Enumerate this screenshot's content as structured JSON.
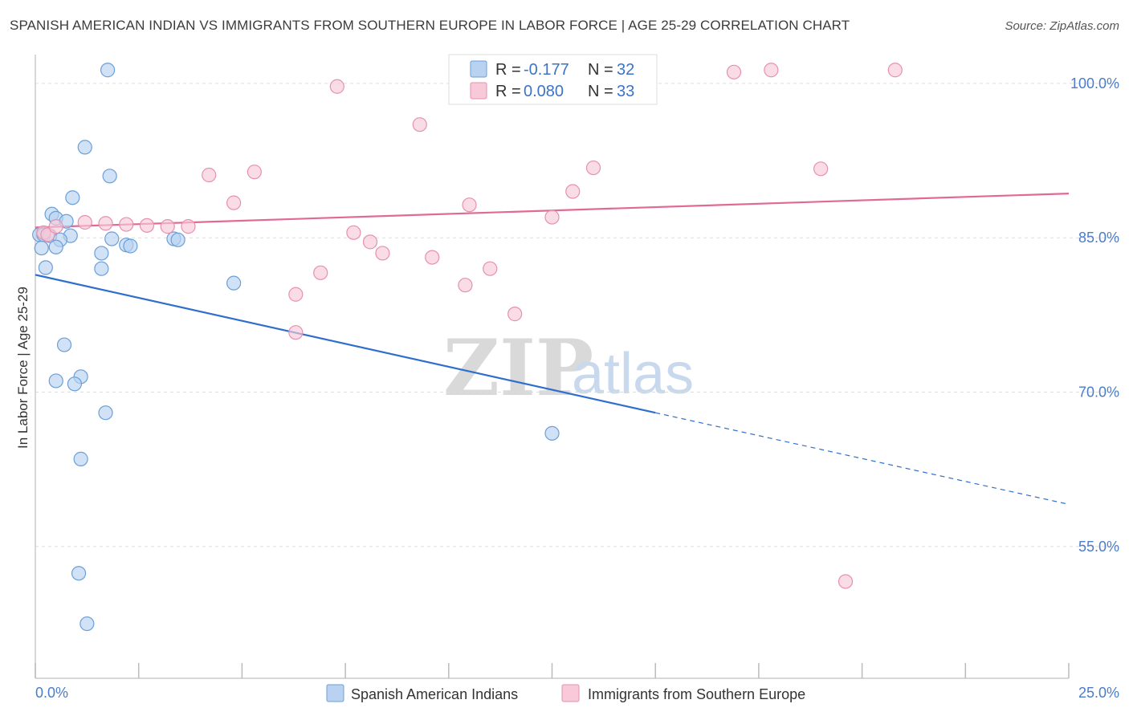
{
  "header": {
    "title": "SPANISH AMERICAN INDIAN VS IMMIGRANTS FROM SOUTHERN EUROPE IN LABOR FORCE | AGE 25-29 CORRELATION CHART",
    "source": "Source: ZipAtlas.com"
  },
  "legend": {
    "r_label": "R =",
    "n_label": "N =",
    "rows": [
      {
        "r": "-0.177",
        "n": "32"
      },
      {
        "r": "0.080",
        "n": "33"
      }
    ]
  },
  "watermark": {
    "zip": "ZIP",
    "atlas": "atlas"
  },
  "colors": {
    "blue_fill": "#b9d2f1",
    "blue_stroke": "#6a9fd8",
    "blue_line": "#2f6fcc",
    "pink_fill": "#f8c9d8",
    "pink_stroke": "#e691ad",
    "pink_line": "#e06a96",
    "axis_label": "#4a7cc9",
    "grid": "#dddddd"
  },
  "chart_data": {
    "type": "scatter",
    "title": "SPANISH AMERICAN INDIAN VS IMMIGRANTS FROM SOUTHERN EUROPE IN LABOR FORCE | AGE 25-29 CORRELATION CHART",
    "xlabel": "",
    "ylabel": "In Labor Force | Age 25-29",
    "xlim": [
      0,
      25
    ],
    "ylim": [
      42.2,
      102.8
    ],
    "x_tick_labels": [
      "0.0%",
      "25.0%"
    ],
    "y_ticks": [
      100,
      85,
      70,
      55
    ],
    "y_tick_labels": [
      "100.0%",
      "85.0%",
      "70.0%",
      "55.0%"
    ],
    "grid": true,
    "legend_position": "bottom",
    "series": [
      {
        "name": "Spanish American Indians",
        "color": "blue",
        "points": [
          [
            1.75,
            101.3
          ],
          [
            1.2,
            93.8
          ],
          [
            1.8,
            91.0
          ],
          [
            0.9,
            88.9
          ],
          [
            0.4,
            87.3
          ],
          [
            0.5,
            86.9
          ],
          [
            0.75,
            86.6
          ],
          [
            0.1,
            85.3
          ],
          [
            0.2,
            85.3
          ],
          [
            0.35,
            85.2
          ],
          [
            0.85,
            85.2
          ],
          [
            0.6,
            84.8
          ],
          [
            1.85,
            84.9
          ],
          [
            3.35,
            84.9
          ],
          [
            3.45,
            84.8
          ],
          [
            2.2,
            84.3
          ],
          [
            2.3,
            84.2
          ],
          [
            0.15,
            84.0
          ],
          [
            0.5,
            84.1
          ],
          [
            1.6,
            83.5
          ],
          [
            0.25,
            82.1
          ],
          [
            1.6,
            82.0
          ],
          [
            4.8,
            80.6
          ],
          [
            0.7,
            74.6
          ],
          [
            0.5,
            71.1
          ],
          [
            1.1,
            71.5
          ],
          [
            0.95,
            70.8
          ],
          [
            1.7,
            68.0
          ],
          [
            12.5,
            66.0
          ],
          [
            1.1,
            63.5
          ],
          [
            1.05,
            52.4
          ],
          [
            1.25,
            47.5
          ]
        ],
        "trend": {
          "x": [
            0,
            15
          ],
          "y": [
            81.4,
            68.0
          ],
          "dashed_to": [
            25,
            59.1
          ]
        }
      },
      {
        "name": "Immigrants from Southern Europe",
        "color": "pink",
        "points": [
          [
            0.2,
            85.5
          ],
          [
            0.3,
            85.3
          ],
          [
            0.5,
            86.1
          ],
          [
            1.2,
            86.5
          ],
          [
            1.7,
            86.4
          ],
          [
            2.2,
            86.3
          ],
          [
            2.7,
            86.2
          ],
          [
            3.2,
            86.1
          ],
          [
            3.7,
            86.1
          ],
          [
            4.2,
            91.1
          ],
          [
            4.8,
            88.4
          ],
          [
            5.3,
            91.4
          ],
          [
            6.3,
            75.8
          ],
          [
            6.3,
            79.5
          ],
          [
            6.9,
            81.6
          ],
          [
            7.3,
            99.7
          ],
          [
            7.7,
            85.5
          ],
          [
            8.1,
            84.6
          ],
          [
            8.4,
            83.5
          ],
          [
            9.3,
            96.0
          ],
          [
            9.6,
            83.1
          ],
          [
            10.4,
            80.4
          ],
          [
            10.5,
            88.2
          ],
          [
            11.0,
            82.0
          ],
          [
            11.6,
            77.6
          ],
          [
            12.5,
            87.0
          ],
          [
            13.0,
            89.5
          ],
          [
            13.5,
            91.8
          ],
          [
            16.9,
            101.1
          ],
          [
            17.8,
            101.3
          ],
          [
            19.0,
            91.7
          ],
          [
            19.6,
            51.6
          ],
          [
            20.8,
            101.3
          ]
        ],
        "trend": {
          "x": [
            0,
            25
          ],
          "y": [
            86.0,
            89.3
          ]
        }
      }
    ]
  }
}
